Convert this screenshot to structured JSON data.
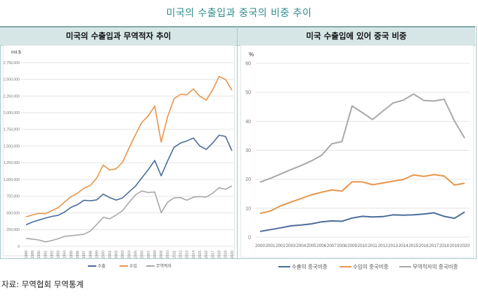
{
  "page": {
    "title": "미국의 수출입과 중국의 비중 추이",
    "source": "자료: 무역협회 무역통계"
  },
  "panels": {
    "left_header": "미국의 수출입과 무역적자 추이",
    "right_header": "미국 수출입에 있어 중국 비중"
  },
  "chart_data": [
    {
      "type": "line",
      "title": "미국의 수출입과 무역적자 추이",
      "ylabel": "mil.$",
      "xlabel": "",
      "ylim": [
        0,
        2750000
      ],
      "yticks": [
        0,
        250000,
        500000,
        750000,
        1000000,
        1250000,
        1500000,
        1750000,
        2000000,
        2250000,
        2500000,
        2750000
      ],
      "ytick_labels": [
        "0",
        "250,000",
        "500,000",
        "750,000",
        "1,000,000",
        "1,250,000",
        "1,500,000",
        "1,750,000",
        "2,000,000",
        "2,250,000",
        "2,500,000",
        "2,750,000"
      ],
      "grid": true,
      "legend": "bottom",
      "x": [
        "1988",
        "1989",
        "1990",
        "1991",
        "1992",
        "1993",
        "1994",
        "1995",
        "1996",
        "1997",
        "1998",
        "1999",
        "2000",
        "2001",
        "2002",
        "2003",
        "2004",
        "2005",
        "2006",
        "2007",
        "2008",
        "2009",
        "2010",
        "2011",
        "2012",
        "2013",
        "2014",
        "2015",
        "2016",
        "2017",
        "2018",
        "2019",
        "2020"
      ],
      "series": [
        {
          "name": "수출",
          "color": "#4a6c9b",
          "values": [
            322000,
            363000,
            393000,
            422000,
            448000,
            465000,
            513000,
            585000,
            625000,
            689000,
            682000,
            696000,
            782000,
            729000,
            693000,
            724000,
            814000,
            901000,
            1026000,
            1148000,
            1287000,
            1056000,
            1278000,
            1482000,
            1546000,
            1578000,
            1621000,
            1503000,
            1451000,
            1547000,
            1664000,
            1645000,
            1430000
          ]
        },
        {
          "name": "수입",
          "color": "#e8954a",
          "values": [
            441000,
            470000,
            495000,
            488000,
            533000,
            580000,
            663000,
            744000,
            795000,
            870000,
            911000,
            1025000,
            1218000,
            1141000,
            1161000,
            1257000,
            1470000,
            1670000,
            1855000,
            1953000,
            2100000,
            1559000,
            1939000,
            2208000,
            2276000,
            2268000,
            2357000,
            2248000,
            2188000,
            2342000,
            2542000,
            2498000,
            2336000
          ]
        },
        {
          "name": "무역적자",
          "color": "#a8a8a8",
          "values": [
            119000,
            107000,
            95000,
            66000,
            85000,
            115000,
            150000,
            159000,
            170000,
            181000,
            229000,
            329000,
            436000,
            412000,
            468000,
            533000,
            656000,
            769000,
            829000,
            805000,
            813000,
            503000,
            661000,
            726000,
            730000,
            690000,
            736000,
            745000,
            737000,
            795000,
            878000,
            853000,
            906000
          ]
        }
      ]
    },
    {
      "type": "line",
      "title": "미국 수출입에 있어 중국 비중",
      "ylabel": "%",
      "xlabel": "",
      "ylim": [
        0,
        60
      ],
      "yticks": [
        0,
        10,
        20,
        30,
        40,
        50,
        60
      ],
      "ytick_labels": [
        "0",
        "10",
        "20",
        "30",
        "40",
        "50",
        "60"
      ],
      "grid": true,
      "legend": "bottom",
      "x": [
        "2000",
        "2001",
        "2002",
        "2003",
        "2004",
        "2005",
        "2006",
        "2007",
        "2008",
        "2009",
        "2010",
        "2011",
        "2012",
        "2013",
        "2014",
        "2015",
        "2016",
        "2017",
        "2018",
        "2019",
        "2020"
      ],
      "series": [
        {
          "name": "수출의 중국비중",
          "color": "#4a6c9b",
          "values": [
            2.0,
            2.6,
            3.2,
            3.9,
            4.2,
            4.6,
            5.3,
            5.6,
            5.5,
            6.6,
            7.2,
            7.0,
            7.1,
            7.7,
            7.6,
            7.7,
            8.0,
            8.4,
            7.2,
            6.5,
            8.7
          ]
        },
        {
          "name": "수입의 중국비중",
          "color": "#e8954a",
          "values": [
            8.2,
            9.0,
            10.8,
            12.1,
            13.3,
            14.6,
            15.5,
            16.3,
            15.9,
            19.1,
            19.1,
            18.1,
            18.7,
            19.3,
            19.9,
            21.5,
            21.0,
            21.6,
            21.1,
            18.0,
            18.6
          ]
        },
        {
          "name": "무역적자의 중국비중",
          "color": "#a8a8a8",
          "values": [
            19.0,
            20.3,
            21.8,
            23.3,
            24.7,
            26.3,
            28.2,
            32.2,
            33.0,
            45.3,
            43.0,
            40.6,
            43.5,
            46.3,
            47.3,
            49.4,
            47.2,
            47.0,
            47.6,
            40.1,
            34.2
          ]
        }
      ]
    }
  ]
}
